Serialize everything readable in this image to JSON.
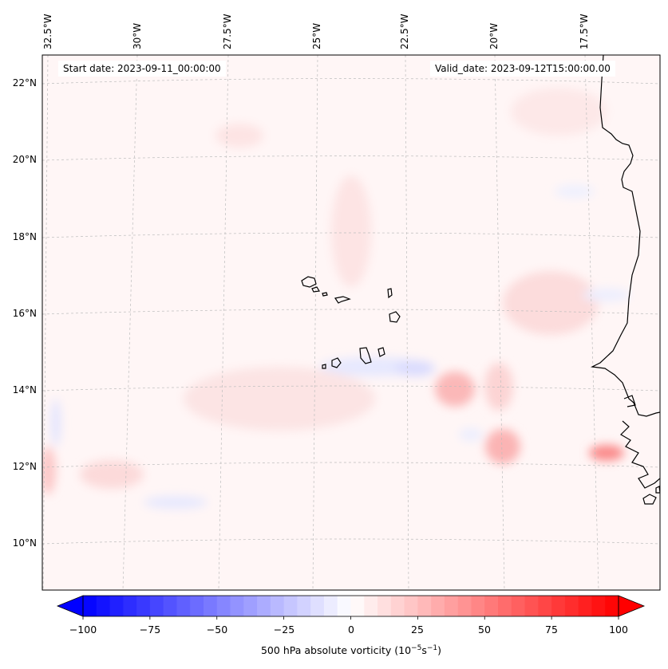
{
  "header": {
    "start_date": "Start date: 2023-09-11_00:00:00",
    "valid_date": "Valid_date: 2023-09-12T15:00:00.00"
  },
  "lon_labels": [
    "32.5°W",
    "30°W",
    "27.5°W",
    "25°W",
    "22.5°W",
    "20°W",
    "17.5°W"
  ],
  "lat_labels": [
    "22°N",
    "20°N",
    "18°N",
    "16°N",
    "14°N",
    "12°N",
    "10°N"
  ],
  "colorbar": {
    "ticks": [
      "−100",
      "−75",
      "−50",
      "−25",
      "0",
      "25",
      "50",
      "75",
      "100"
    ],
    "label_prefix": "500 hPa absolute vorticity (10",
    "label_exp1": "−5",
    "label_mid": "s",
    "label_exp2": "−1",
    "label_suffix": ")",
    "range": [
      -100,
      100
    ],
    "levels": 40
  },
  "colors": {
    "negative": "#0000ff",
    "positive": "#ff0000",
    "neutral": "#ffffff",
    "coast": "#000000",
    "grid": "#b0b0b0"
  }
}
